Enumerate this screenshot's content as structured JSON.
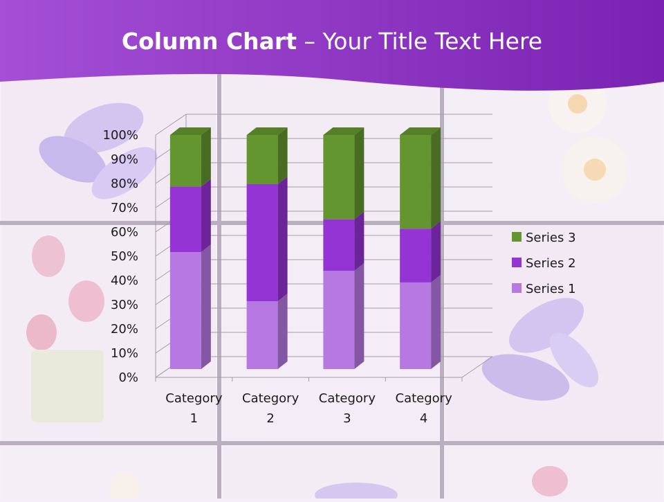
{
  "slide": {
    "title_bold": "Column Chart",
    "title_rest": " – Your Title Text Here",
    "colors": {
      "header": "#8a30c4",
      "background": "#f6eef8",
      "grid_frame": "#b8aebd"
    }
  },
  "chart_data": {
    "type": "bar",
    "stacked": true,
    "percent": true,
    "three_d": true,
    "categories": [
      "Category 1",
      "Category 2",
      "Category 3",
      "Category 4"
    ],
    "series": [
      {
        "name": "Series 1",
        "color": "#b679e2",
        "values": [
          50,
          29,
          42,
          37
        ]
      },
      {
        "name": "Series 2",
        "color": "#9434d4",
        "values": [
          28,
          50,
          22,
          23
        ]
      },
      {
        "name": "Series 3",
        "color": "#64962f",
        "values": [
          22,
          21,
          36,
          40
        ]
      }
    ],
    "ylim": [
      0,
      100
    ],
    "yticks": [
      "0%",
      "10%",
      "20%",
      "30%",
      "40%",
      "50%",
      "60%",
      "70%",
      "80%",
      "90%",
      "100%"
    ],
    "grid": true,
    "legend": "right",
    "title": "",
    "xlabel": "",
    "ylabel": ""
  }
}
